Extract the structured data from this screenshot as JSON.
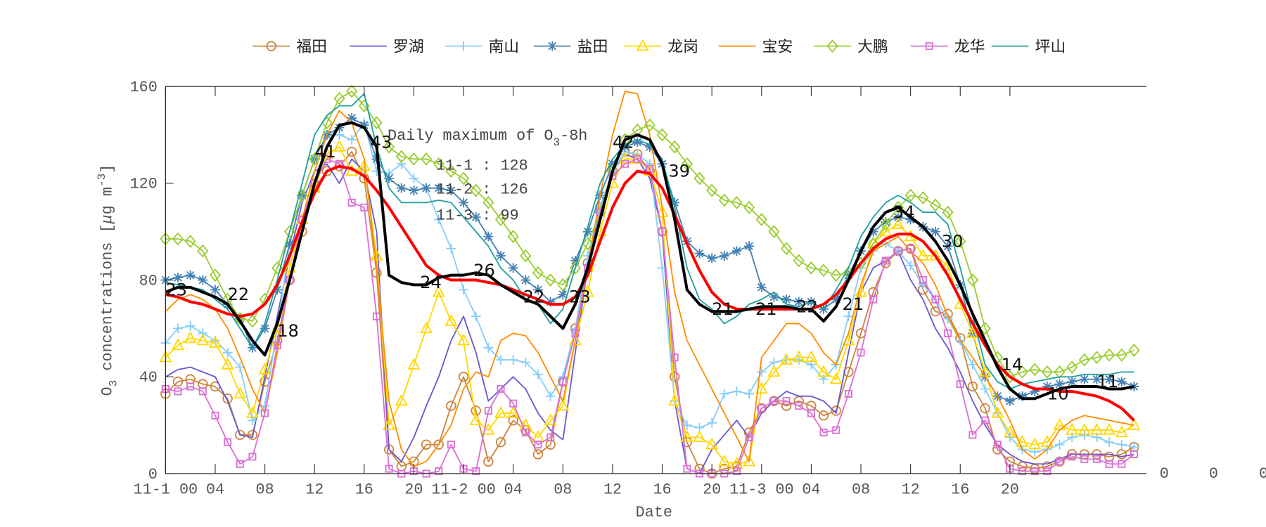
{
  "chart_data": {
    "type": "line",
    "title": "",
    "xlabel": "Date",
    "ylabel": "O3 concentrations [μg m-3]",
    "ylabel_parts": {
      "pre": "O",
      "sub": "3",
      "mid": " concentrations [",
      "mu": "μ",
      "post": "g m",
      "sup": "-3",
      "end": "]"
    },
    "xlim": [
      0,
      79
    ],
    "ylim": [
      0,
      160
    ],
    "yticks": [
      0,
      40,
      80,
      120,
      160
    ],
    "xticks": [
      {
        "x": 0,
        "label": "11-1 00"
      },
      {
        "x": 4,
        "label": "04"
      },
      {
        "x": 8,
        "label": "08"
      },
      {
        "x": 12,
        "label": "12"
      },
      {
        "x": 16,
        "label": "16"
      },
      {
        "x": 20,
        "label": "20"
      },
      {
        "x": 24,
        "label": "11-2 00"
      },
      {
        "x": 28,
        "label": "04"
      },
      {
        "x": 32,
        "label": "08"
      },
      {
        "x": 36,
        "label": "12"
      },
      {
        "x": 40,
        "label": "16"
      },
      {
        "x": 44,
        "label": "20"
      },
      {
        "x": 48,
        "label": "11-3 00"
      },
      {
        "x": 52,
        "label": "04"
      },
      {
        "x": 56,
        "label": "08"
      },
      {
        "x": 60,
        "label": "12"
      },
      {
        "x": 64,
        "label": "16"
      },
      {
        "x": 68,
        "label": "20"
      }
    ],
    "stray_labels": [
      "0",
      "0",
      "0"
    ],
    "grid": false,
    "legend_placement": "top-center",
    "annotation": {
      "title_pre": "Daily maximum of O",
      "title_sub": "3",
      "title_post": "-8h",
      "lines": [
        "11-1 : 128",
        "11-2 : 126",
        "11-3 : 99"
      ]
    },
    "series": [
      {
        "name": "福田",
        "color": "#CD853F",
        "marker": "circle",
        "values": [
          33,
          38,
          39,
          37,
          36,
          31,
          16,
          16,
          38,
          55,
          80,
          100,
          118,
          125,
          127,
          133,
          122,
          83,
          10,
          3,
          5,
          12,
          12,
          28,
          40,
          26,
          5,
          13,
          22,
          18,
          8,
          12,
          38,
          60,
          87,
          110,
          125,
          133,
          132,
          125,
          100,
          40,
          13,
          2,
          0,
          2,
          3,
          17,
          27,
          30,
          28,
          30,
          28,
          24,
          26,
          42,
          58,
          75,
          87,
          92,
          93,
          76,
          67,
          66,
          56,
          36,
          27,
          10,
          5,
          3,
          2,
          3,
          5,
          8,
          8,
          8,
          7,
          8,
          11
        ]
      },
      {
        "name": "罗湖",
        "color": "#6A5ACD",
        "marker": "none",
        "values": [
          40,
          43,
          44,
          42,
          40,
          30,
          16,
          15,
          40,
          65,
          90,
          112,
          125,
          128,
          120,
          130,
          125,
          100,
          10,
          5,
          15,
          28,
          40,
          55,
          65,
          50,
          30,
          35,
          40,
          35,
          25,
          18,
          14,
          50,
          85,
          110,
          125,
          132,
          130,
          122,
          100,
          30,
          2,
          0,
          10,
          16,
          22,
          15,
          25,
          30,
          34,
          32,
          32,
          30,
          25,
          50,
          75,
          85,
          88,
          92,
          80,
          72,
          60,
          52,
          42,
          30,
          20,
          12,
          8,
          5,
          4,
          4,
          6,
          8,
          8,
          8,
          8,
          7,
          8
        ]
      },
      {
        "name": "南山",
        "color": "#87CEFA",
        "marker": "plus",
        "values": [
          54,
          60,
          61,
          58,
          55,
          50,
          44,
          22,
          28,
          60,
          95,
          115,
          130,
          140,
          140,
          138,
          145,
          125,
          124,
          128,
          122,
          118,
          105,
          93,
          76,
          65,
          52,
          47,
          47,
          46,
          41,
          32,
          40,
          60,
          90,
          110,
          125,
          133,
          132,
          128,
          85,
          30,
          20,
          19,
          21,
          33,
          34,
          33,
          42,
          46,
          47,
          47,
          45,
          39,
          45,
          65,
          85,
          92,
          95,
          92,
          86,
          78,
          72,
          64,
          55,
          45,
          35,
          25,
          15,
          10,
          9,
          10,
          12,
          15,
          16,
          15,
          13,
          12,
          11
        ]
      },
      {
        "name": "盐田",
        "color": "#4682B4",
        "marker": "asterisk",
        "values": [
          80,
          81,
          82,
          80,
          76,
          70,
          64,
          52,
          60,
          76,
          95,
          115,
          130,
          140,
          143,
          147,
          144,
          130,
          122,
          118,
          117,
          118,
          118,
          117,
          112,
          106,
          98,
          90,
          85,
          80,
          76,
          71,
          74,
          88,
          100,
          115,
          128,
          135,
          137,
          135,
          128,
          112,
          96,
          91,
          89,
          90,
          92,
          94,
          77,
          73,
          72,
          71,
          71,
          68,
          72,
          82,
          92,
          100,
          104,
          106,
          105,
          102,
          100,
          94,
          78,
          58,
          40,
          32,
          30,
          32,
          34,
          36,
          37,
          38,
          39,
          39,
          39,
          38,
          36
        ]
      },
      {
        "name": "龙岗",
        "color": "#FFD700",
        "marker": "triangle",
        "values": [
          48,
          53,
          56,
          55,
          54,
          45,
          33,
          25,
          43,
          60,
          85,
          105,
          118,
          132,
          135,
          125,
          127,
          90,
          20,
          30,
          45,
          60,
          75,
          63,
          55,
          22,
          18,
          25,
          25,
          20,
          15,
          22,
          28,
          55,
          75,
          100,
          120,
          130,
          130,
          125,
          108,
          30,
          15,
          15,
          12,
          5,
          4,
          5,
          35,
          42,
          47,
          48,
          48,
          42,
          39,
          55,
          75,
          95,
          100,
          103,
          98,
          90,
          90,
          86,
          70,
          58,
          42,
          25,
          17,
          13,
          12,
          13,
          20,
          18,
          18,
          18,
          18,
          17,
          20
        ]
      },
      {
        "name": "宝安",
        "color": "#FF8C00",
        "marker": "none",
        "values": [
          67,
          72,
          74,
          72,
          68,
          60,
          48,
          35,
          25,
          50,
          80,
          105,
          125,
          140,
          150,
          145,
          130,
          85,
          30,
          10,
          3,
          5,
          12,
          20,
          35,
          42,
          40,
          55,
          58,
          57,
          50,
          40,
          30,
          55,
          85,
          115,
          140,
          158,
          157,
          140,
          110,
          75,
          55,
          45,
          35,
          25,
          15,
          5,
          48,
          55,
          62,
          62,
          58,
          50,
          45,
          58,
          78,
          92,
          95,
          98,
          92,
          87,
          78,
          65,
          55,
          48,
          40,
          32,
          22,
          10,
          6,
          10,
          18,
          22,
          24,
          23,
          22,
          21,
          20
        ]
      },
      {
        "name": "大鹏",
        "color": "#9ACD32",
        "marker": "diamond",
        "values": [
          97,
          97,
          96,
          92,
          82,
          72,
          64,
          63,
          72,
          85,
          100,
          115,
          130,
          145,
          155,
          158,
          152,
          145,
          135,
          131,
          130,
          130,
          128,
          125,
          122,
          117,
          112,
          105,
          98,
          90,
          83,
          80,
          78,
          85,
          95,
          108,
          125,
          138,
          142,
          144,
          140,
          135,
          128,
          122,
          117,
          113,
          112,
          110,
          105,
          100,
          93,
          88,
          85,
          84,
          82,
          83,
          87,
          95,
          103,
          110,
          115,
          114,
          111,
          108,
          96,
          80,
          60,
          48,
          40,
          42,
          43,
          42,
          42,
          44,
          47,
          48,
          49,
          49,
          51
        ]
      },
      {
        "name": "龙华",
        "color": "#DA70D6",
        "marker": "square",
        "values": [
          35,
          34,
          36,
          34,
          24,
          13,
          4,
          7,
          25,
          53,
          80,
          105,
          120,
          130,
          128,
          112,
          110,
          65,
          2,
          0,
          1,
          0,
          1,
          12,
          2,
          1,
          26,
          35,
          29,
          17,
          12,
          15,
          38,
          58,
          85,
          108,
          123,
          128,
          130,
          126,
          100,
          48,
          2,
          0,
          0,
          0,
          1,
          15,
          27,
          30,
          30,
          28,
          25,
          17,
          18,
          33,
          50,
          72,
          88,
          92,
          93,
          80,
          72,
          58,
          37,
          16,
          22,
          12,
          2,
          1,
          1,
          1,
          5,
          7,
          6,
          6,
          4,
          4,
          8
        ]
      },
      {
        "name": "坪山",
        "color": "#20A0A0",
        "marker": "none",
        "values": [
          79,
          78,
          77,
          76,
          72,
          68,
          60,
          52,
          62,
          80,
          100,
          120,
          140,
          148,
          152,
          152,
          157,
          135,
          118,
          112,
          112,
          112,
          113,
          112,
          106,
          100,
          94,
          85,
          80,
          72,
          70,
          62,
          68,
          85,
          102,
          120,
          130,
          136,
          138,
          136,
          130,
          110,
          85,
          72,
          68,
          62,
          65,
          70,
          72,
          75,
          70,
          69,
          71,
          68,
          76,
          85,
          98,
          106,
          112,
          115,
          112,
          108,
          108,
          103,
          85,
          65,
          45,
          38,
          35,
          37,
          38,
          39,
          40,
          40,
          41,
          41,
          41,
          42,
          42
        ]
      }
    ],
    "red_line": {
      "color": "#FF0000",
      "values": [
        74,
        73,
        71,
        70,
        68,
        66,
        65,
        66,
        70,
        78,
        90,
        104,
        116,
        125,
        127,
        126,
        123,
        117,
        110,
        102,
        94,
        86,
        82,
        80,
        80,
        80,
        79,
        78,
        76,
        74,
        72,
        70,
        70,
        73,
        82,
        96,
        110,
        120,
        125,
        124,
        118,
        107,
        95,
        84,
        75,
        70,
        68,
        68,
        68,
        68,
        68,
        68,
        68,
        70,
        74,
        80,
        87,
        93,
        97,
        99,
        99,
        96,
        90,
        82,
        72,
        62,
        53,
        45,
        40,
        37,
        35,
        35,
        34,
        34,
        33,
        32,
        30,
        27,
        22
      ]
    },
    "black_line": {
      "color": "#000000",
      "values": [
        75,
        77,
        77,
        75,
        73,
        70,
        63,
        55,
        49,
        62,
        80,
        100,
        120,
        135,
        144,
        145,
        143,
        135,
        82,
        79,
        78,
        78,
        81,
        82,
        82,
        83,
        82,
        78,
        75,
        72,
        70,
        65,
        60,
        70,
        85,
        105,
        125,
        138,
        140,
        138,
        128,
        105,
        76,
        70,
        67,
        67,
        67,
        68,
        69,
        69,
        69,
        68,
        68,
        63,
        69,
        80,
        92,
        102,
        108,
        110,
        106,
        102,
        96,
        88,
        78,
        66,
        55,
        44,
        35,
        31,
        31,
        33,
        35,
        36,
        36,
        36,
        35,
        35,
        36
      ]
    },
    "black_labels": [
      {
        "x": 0,
        "y": 75,
        "label": "23"
      },
      {
        "x": 5,
        "y": 73,
        "label": "22"
      },
      {
        "x": 9,
        "y": 58,
        "label": "18"
      },
      {
        "x": 12,
        "y": 132,
        "label": "41"
      },
      {
        "x": 16.5,
        "y": 136,
        "label": "43"
      },
      {
        "x": 20.5,
        "y": 78,
        "label": "24"
      },
      {
        "x": 24.8,
        "y": 83,
        "label": "26"
      },
      {
        "x": 28.8,
        "y": 72,
        "label": "22"
      },
      {
        "x": 32.5,
        "y": 72,
        "label": "23"
      },
      {
        "x": 36,
        "y": 136,
        "label": "42"
      },
      {
        "x": 40.5,
        "y": 124,
        "label": "39"
      },
      {
        "x": 44,
        "y": 67,
        "label": "21"
      },
      {
        "x": 47.5,
        "y": 67,
        "label": "21"
      },
      {
        "x": 50.8,
        "y": 68,
        "label": "22"
      },
      {
        "x": 54.5,
        "y": 69,
        "label": "21"
      },
      {
        "x": 58.6,
        "y": 107,
        "label": "34"
      },
      {
        "x": 62.5,
        "y": 95,
        "label": "30"
      },
      {
        "x": 67.3,
        "y": 44,
        "label": "14"
      },
      {
        "x": 71,
        "y": 32,
        "label": "10"
      },
      {
        "x": 75,
        "y": 37,
        "label": "11"
      }
    ]
  }
}
